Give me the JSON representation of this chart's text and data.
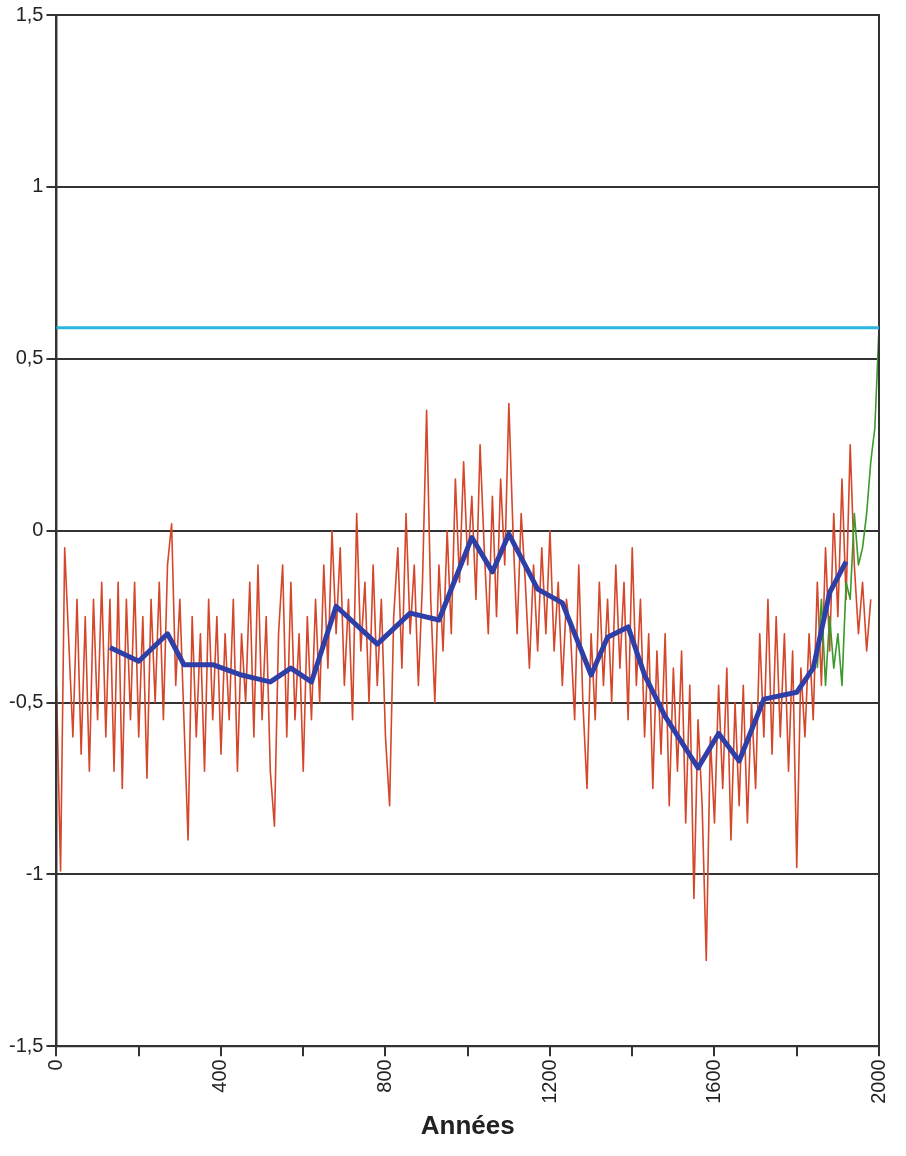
{
  "chart_data": {
    "type": "line",
    "xlabel": "Années",
    "xlim": [
      0,
      2000
    ],
    "ylim": [
      -1.5,
      1.5
    ],
    "xticks": [
      0,
      {
        "value": 200,
        "label": null
      },
      400,
      {
        "value": 600,
        "label": null
      },
      800,
      {
        "value": 1000,
        "label": null
      },
      1200,
      {
        "value": 1400,
        "label": null
      },
      1600,
      {
        "value": 1800,
        "label": null
      },
      2000
    ],
    "yticks": [
      {
        "value": -1.5,
        "label": "-1,5"
      },
      -1,
      {
        "value": -0.5,
        "label": "-0,5"
      },
      0,
      {
        "value": 0.5,
        "label": "0,5"
      },
      1,
      {
        "value": 1.5,
        "label": "1,5"
      }
    ],
    "grid": "y",
    "legend": false,
    "marker": "none",
    "line_style": "solid",
    "ref_lines": [
      {
        "axis": "y",
        "value": 0.59,
        "color": "#29b6e0"
      }
    ],
    "series": [
      {
        "color": "#d4472a",
        "x": [
          0,
          10,
          20,
          40,
          50,
          60,
          70,
          80,
          90,
          100,
          110,
          120,
          130,
          140,
          150,
          160,
          170,
          180,
          190,
          200,
          210,
          220,
          230,
          240,
          250,
          260,
          270,
          280,
          290,
          300,
          310,
          320,
          330,
          340,
          350,
          360,
          370,
          380,
          390,
          400,
          410,
          420,
          430,
          440,
          450,
          460,
          470,
          480,
          490,
          500,
          510,
          520,
          530,
          540,
          550,
          560,
          570,
          580,
          590,
          600,
          610,
          620,
          630,
          640,
          650,
          660,
          670,
          680,
          690,
          700,
          710,
          720,
          730,
          740,
          750,
          760,
          770,
          780,
          790,
          800,
          810,
          820,
          830,
          840,
          850,
          860,
          870,
          880,
          890,
          900,
          910,
          920,
          930,
          940,
          950,
          960,
          970,
          980,
          990,
          1000,
          1010,
          1020,
          1030,
          1040,
          1050,
          1060,
          1070,
          1080,
          1090,
          1100,
          1110,
          1120,
          1130,
          1140,
          1150,
          1160,
          1170,
          1180,
          1190,
          1200,
          1210,
          1220,
          1230,
          1240,
          1250,
          1260,
          1270,
          1280,
          1290,
          1300,
          1310,
          1320,
          1330,
          1340,
          1350,
          1360,
          1370,
          1380,
          1390,
          1400,
          1410,
          1420,
          1430,
          1440,
          1450,
          1460,
          1470,
          1480,
          1490,
          1500,
          1510,
          1520,
          1530,
          1540,
          1550,
          1560,
          1570,
          1580,
          1590,
          1600,
          1610,
          1620,
          1630,
          1640,
          1650,
          1660,
          1670,
          1680,
          1690,
          1700,
          1710,
          1720,
          1730,
          1740,
          1750,
          1760,
          1770,
          1780,
          1790,
          1800,
          1810,
          1820,
          1830,
          1840,
          1850,
          1860,
          1870,
          1880,
          1890,
          1900,
          1910,
          1920,
          1930,
          1940,
          1950,
          1960,
          1970,
          1980
        ],
        "values": [
          -0.45,
          -0.99,
          -0.05,
          -0.6,
          -0.2,
          -0.65,
          -0.25,
          -0.7,
          -0.2,
          -0.55,
          -0.15,
          -0.6,
          -0.2,
          -0.7,
          -0.15,
          -0.75,
          -0.2,
          -0.55,
          -0.15,
          -0.6,
          -0.25,
          -0.72,
          -0.2,
          -0.5,
          -0.15,
          -0.55,
          -0.1,
          0.02,
          -0.45,
          -0.2,
          -0.55,
          -0.9,
          -0.25,
          -0.6,
          -0.3,
          -0.7,
          -0.2,
          -0.55,
          -0.25,
          -0.65,
          -0.3,
          -0.55,
          -0.2,
          -0.7,
          -0.3,
          -0.5,
          -0.15,
          -0.6,
          -0.1,
          -0.55,
          -0.25,
          -0.7,
          -0.86,
          -0.3,
          -0.1,
          -0.6,
          -0.15,
          -0.55,
          -0.3,
          -0.7,
          -0.25,
          -0.55,
          -0.2,
          -0.5,
          -0.1,
          -0.4,
          0.0,
          -0.3,
          -0.05,
          -0.45,
          -0.2,
          -0.55,
          0.05,
          -0.35,
          -0.15,
          -0.5,
          -0.1,
          -0.45,
          -0.2,
          -0.6,
          -0.8,
          -0.25,
          -0.05,
          -0.4,
          0.05,
          -0.3,
          -0.1,
          -0.45,
          -0.15,
          0.35,
          -0.2,
          -0.5,
          -0.1,
          -0.35,
          0.0,
          -0.3,
          0.15,
          -0.15,
          0.2,
          -0.1,
          0.1,
          -0.2,
          0.25,
          -0.05,
          -0.3,
          0.1,
          -0.25,
          0.15,
          -0.1,
          0.37,
          0.0,
          -0.3,
          0.05,
          -0.15,
          -0.4,
          -0.1,
          -0.35,
          -0.05,
          -0.3,
          0.0,
          -0.35,
          -0.15,
          -0.45,
          -0.2,
          -0.3,
          -0.55,
          -0.1,
          -0.5,
          -0.75,
          -0.3,
          -0.55,
          -0.15,
          -0.45,
          -0.2,
          -0.5,
          -0.1,
          -0.4,
          -0.15,
          -0.55,
          -0.05,
          -0.45,
          -0.2,
          -0.6,
          -0.3,
          -0.75,
          -0.35,
          -0.65,
          -0.3,
          -0.8,
          -0.4,
          -0.7,
          -0.35,
          -0.85,
          -0.45,
          -1.07,
          -0.55,
          -0.8,
          -1.25,
          -0.6,
          -0.85,
          -0.45,
          -0.75,
          -0.4,
          -0.9,
          -0.5,
          -0.8,
          -0.45,
          -0.85,
          -0.5,
          -0.75,
          -0.3,
          -0.6,
          -0.2,
          -0.65,
          -0.25,
          -0.6,
          -0.3,
          -0.7,
          -0.35,
          -0.98,
          -0.4,
          -0.6,
          -0.3,
          -0.55,
          -0.15,
          -0.45,
          -0.05,
          -0.35,
          0.05,
          -0.25,
          0.15,
          -0.2,
          0.25,
          -0.1,
          -0.3,
          -0.15,
          -0.35,
          -0.2
        ]
      },
      {
        "color": "#3a9a2a",
        "x": [
          1850,
          1860,
          1870,
          1880,
          1890,
          1900,
          1910,
          1920,
          1930,
          1940,
          1950,
          1960,
          1970,
          1980,
          1990,
          2000
        ],
        "values": [
          -0.4,
          -0.2,
          -0.45,
          -0.25,
          -0.4,
          -0.3,
          -0.45,
          -0.15,
          -0.2,
          0.05,
          -0.1,
          -0.05,
          0.05,
          0.2,
          0.3,
          0.59
        ]
      },
      {
        "color": "#2f3fa8",
        "x": [
          130,
          200,
          270,
          310,
          380,
          450,
          520,
          570,
          620,
          680,
          780,
          860,
          930,
          1010,
          1060,
          1100,
          1170,
          1230,
          1300,
          1340,
          1390,
          1430,
          1480,
          1560,
          1610,
          1660,
          1720,
          1800,
          1840,
          1880,
          1920
        ],
        "values": [
          -0.34,
          -0.38,
          -0.3,
          -0.39,
          -0.39,
          -0.42,
          -0.44,
          -0.4,
          -0.44,
          -0.22,
          -0.33,
          -0.24,
          -0.26,
          -0.02,
          -0.12,
          -0.01,
          -0.17,
          -0.21,
          -0.42,
          -0.31,
          -0.28,
          -0.42,
          -0.54,
          -0.69,
          -0.59,
          -0.67,
          -0.49,
          -0.47,
          -0.4,
          -0.18,
          -0.09
        ]
      }
    ]
  }
}
